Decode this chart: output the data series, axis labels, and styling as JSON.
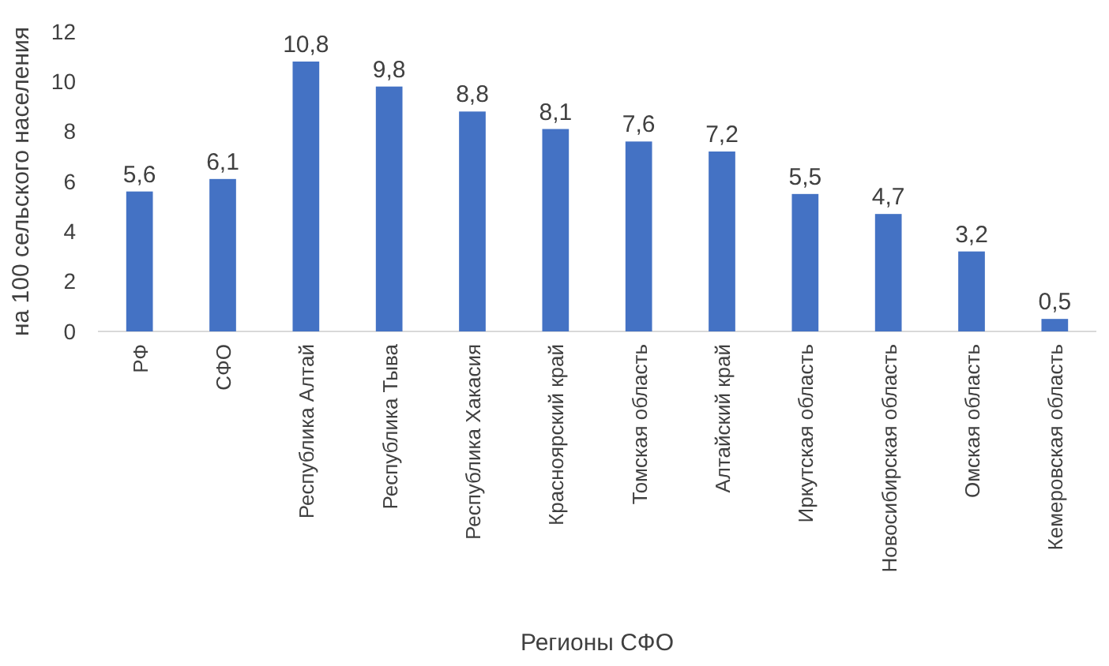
{
  "chart_data": {
    "type": "bar",
    "categories": [
      "РФ",
      "СФО",
      "Республика Алтай",
      "Республика Тыва",
      "Республика Хакасия",
      "Красноярский край",
      "Томская область",
      "Алтайский край",
      "Иркутская область",
      "Новосибирская область",
      "Омская область",
      "Кемеровская область"
    ],
    "values": [
      5.6,
      6.1,
      10.8,
      9.8,
      8.8,
      8.1,
      7.6,
      7.2,
      5.5,
      4.7,
      3.2,
      0.5
    ],
    "color": "#4472c4",
    "ylim": [
      0,
      12
    ],
    "yticks": [
      0,
      2,
      4,
      6,
      8,
      10,
      12
    ],
    "ylabel": "на 100 сельского населения",
    "xlabel": "Регионы СФО",
    "value_labels": [
      "5,6",
      "6,1",
      "10,8",
      "9,8",
      "8,8",
      "8,1",
      "7,6",
      "7,2",
      "5,5",
      "4,7",
      "3,2",
      "0,5"
    ]
  }
}
